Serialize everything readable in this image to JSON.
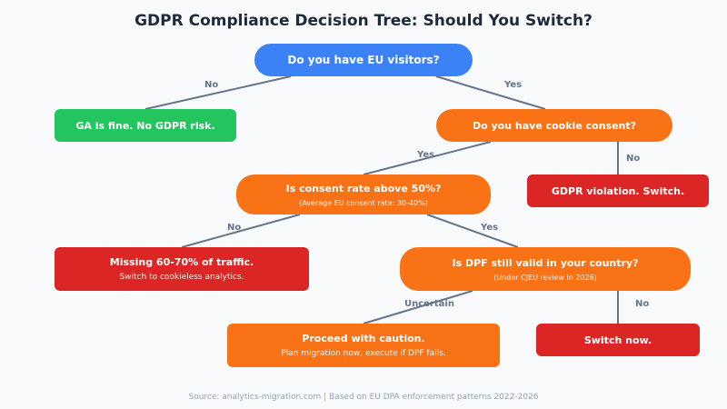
{
  "title": "GDPR Compliance Decision Tree: Should You Switch?",
  "colors": {
    "question_start": "#3b82f6",
    "question": "#f97316",
    "outcome_safe": "#22c55e",
    "outcome_risk": "#dc2626",
    "connector": "#64748b"
  },
  "nodes": {
    "eu_visitors": {
      "label": "Do you have EU visitors?"
    },
    "ga_fine": {
      "label": "GA is fine. No GDPR risk."
    },
    "cookie_consent": {
      "label": "Do you have cookie consent?"
    },
    "consent_rate": {
      "label": "Is consent rate above 50%?",
      "note": "(Average EU consent rate: 30-40%)"
    },
    "gdpr_violation": {
      "label": "GDPR violation. Switch."
    },
    "missing_traffic": {
      "label": "Missing 60-70% of traffic.",
      "note": "Switch to cookieless analytics."
    },
    "dpf_valid": {
      "label": "Is DPF still valid in your country?",
      "note": "(Under CJEU review in 2026)"
    },
    "caution": {
      "label": "Proceed with caution.",
      "note": "Plan migration now, execute if DPF falls."
    },
    "switch_now": {
      "label": "Switch now."
    }
  },
  "edges": {
    "eu_no": "No",
    "eu_yes": "Yes",
    "consent_yes": "Yes",
    "consent_no": "No",
    "rate_no": "No",
    "rate_yes": "Yes",
    "dpf_uncertain": "Uncertain",
    "dpf_no": "No"
  },
  "footer": "Source: analytics-migration.com | Based on EU DPA enforcement patterns 2022-2026"
}
